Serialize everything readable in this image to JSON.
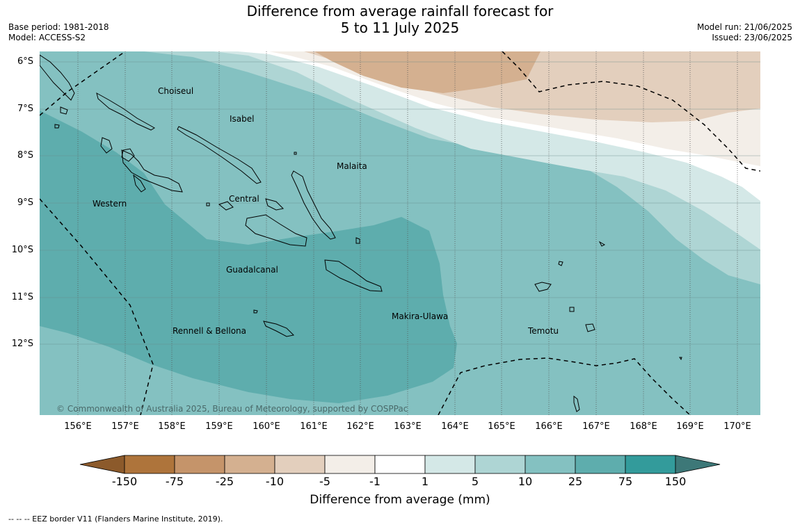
{
  "title": {
    "line1": "Difference from average rainfall forecast for",
    "line2": "5 to 11 July 2025"
  },
  "meta": {
    "base_period": "Base period: 1981-2018",
    "model": "Model: ACCESS-S2",
    "model_run": "Model run: 21/06/2025",
    "issued": "Issued: 23/06/2025"
  },
  "map": {
    "latitude_labels": [
      "6°S",
      "7°S",
      "8°S",
      "9°S",
      "10°S",
      "11°S",
      "12°S"
    ],
    "longitude_labels": [
      "156°E",
      "157°E",
      "158°E",
      "159°E",
      "160°E",
      "161°E",
      "162°E",
      "163°E",
      "164°E",
      "165°E",
      "166°E",
      "167°E",
      "168°E",
      "169°E",
      "170°E"
    ],
    "places": {
      "choiseul": "Choiseul",
      "isabel": "Isabel",
      "malaita": "Malaita",
      "western": "Western",
      "central": "Central",
      "guadalcanal": "Guadalcanal",
      "makira": "Makira-Ulawa",
      "rennell": "Rennell & Bellona",
      "temotu": "Temotu"
    },
    "copyright": "© Commonwealth of Australia 2025, Bureau of Meteorology, supported by COSPPac"
  },
  "colorbar": {
    "title": "Difference from average (mm)",
    "ticks": [
      "-150",
      "-75",
      "-25",
      "-10",
      "-5",
      "-1",
      "1",
      "5",
      "10",
      "25",
      "75",
      "150"
    ],
    "colors": {
      "below_min": "#8c5a2b",
      "b1": "#ae743b",
      "b2": "#c5946a",
      "b3": "#d4b090",
      "b4": "#e3cfbd",
      "b5": "#f3eee8",
      "b6": "#ffffff",
      "b7": "#d4e8e7",
      "b8": "#aed5d4",
      "b9": "#84c1c1",
      "b10": "#5eadad",
      "b11": "#339b9b",
      "above_max": "#3d7878"
    }
  },
  "legend_note": "-- -- -- EEZ border V11 (Flanders Marine Institute, 2019)."
}
